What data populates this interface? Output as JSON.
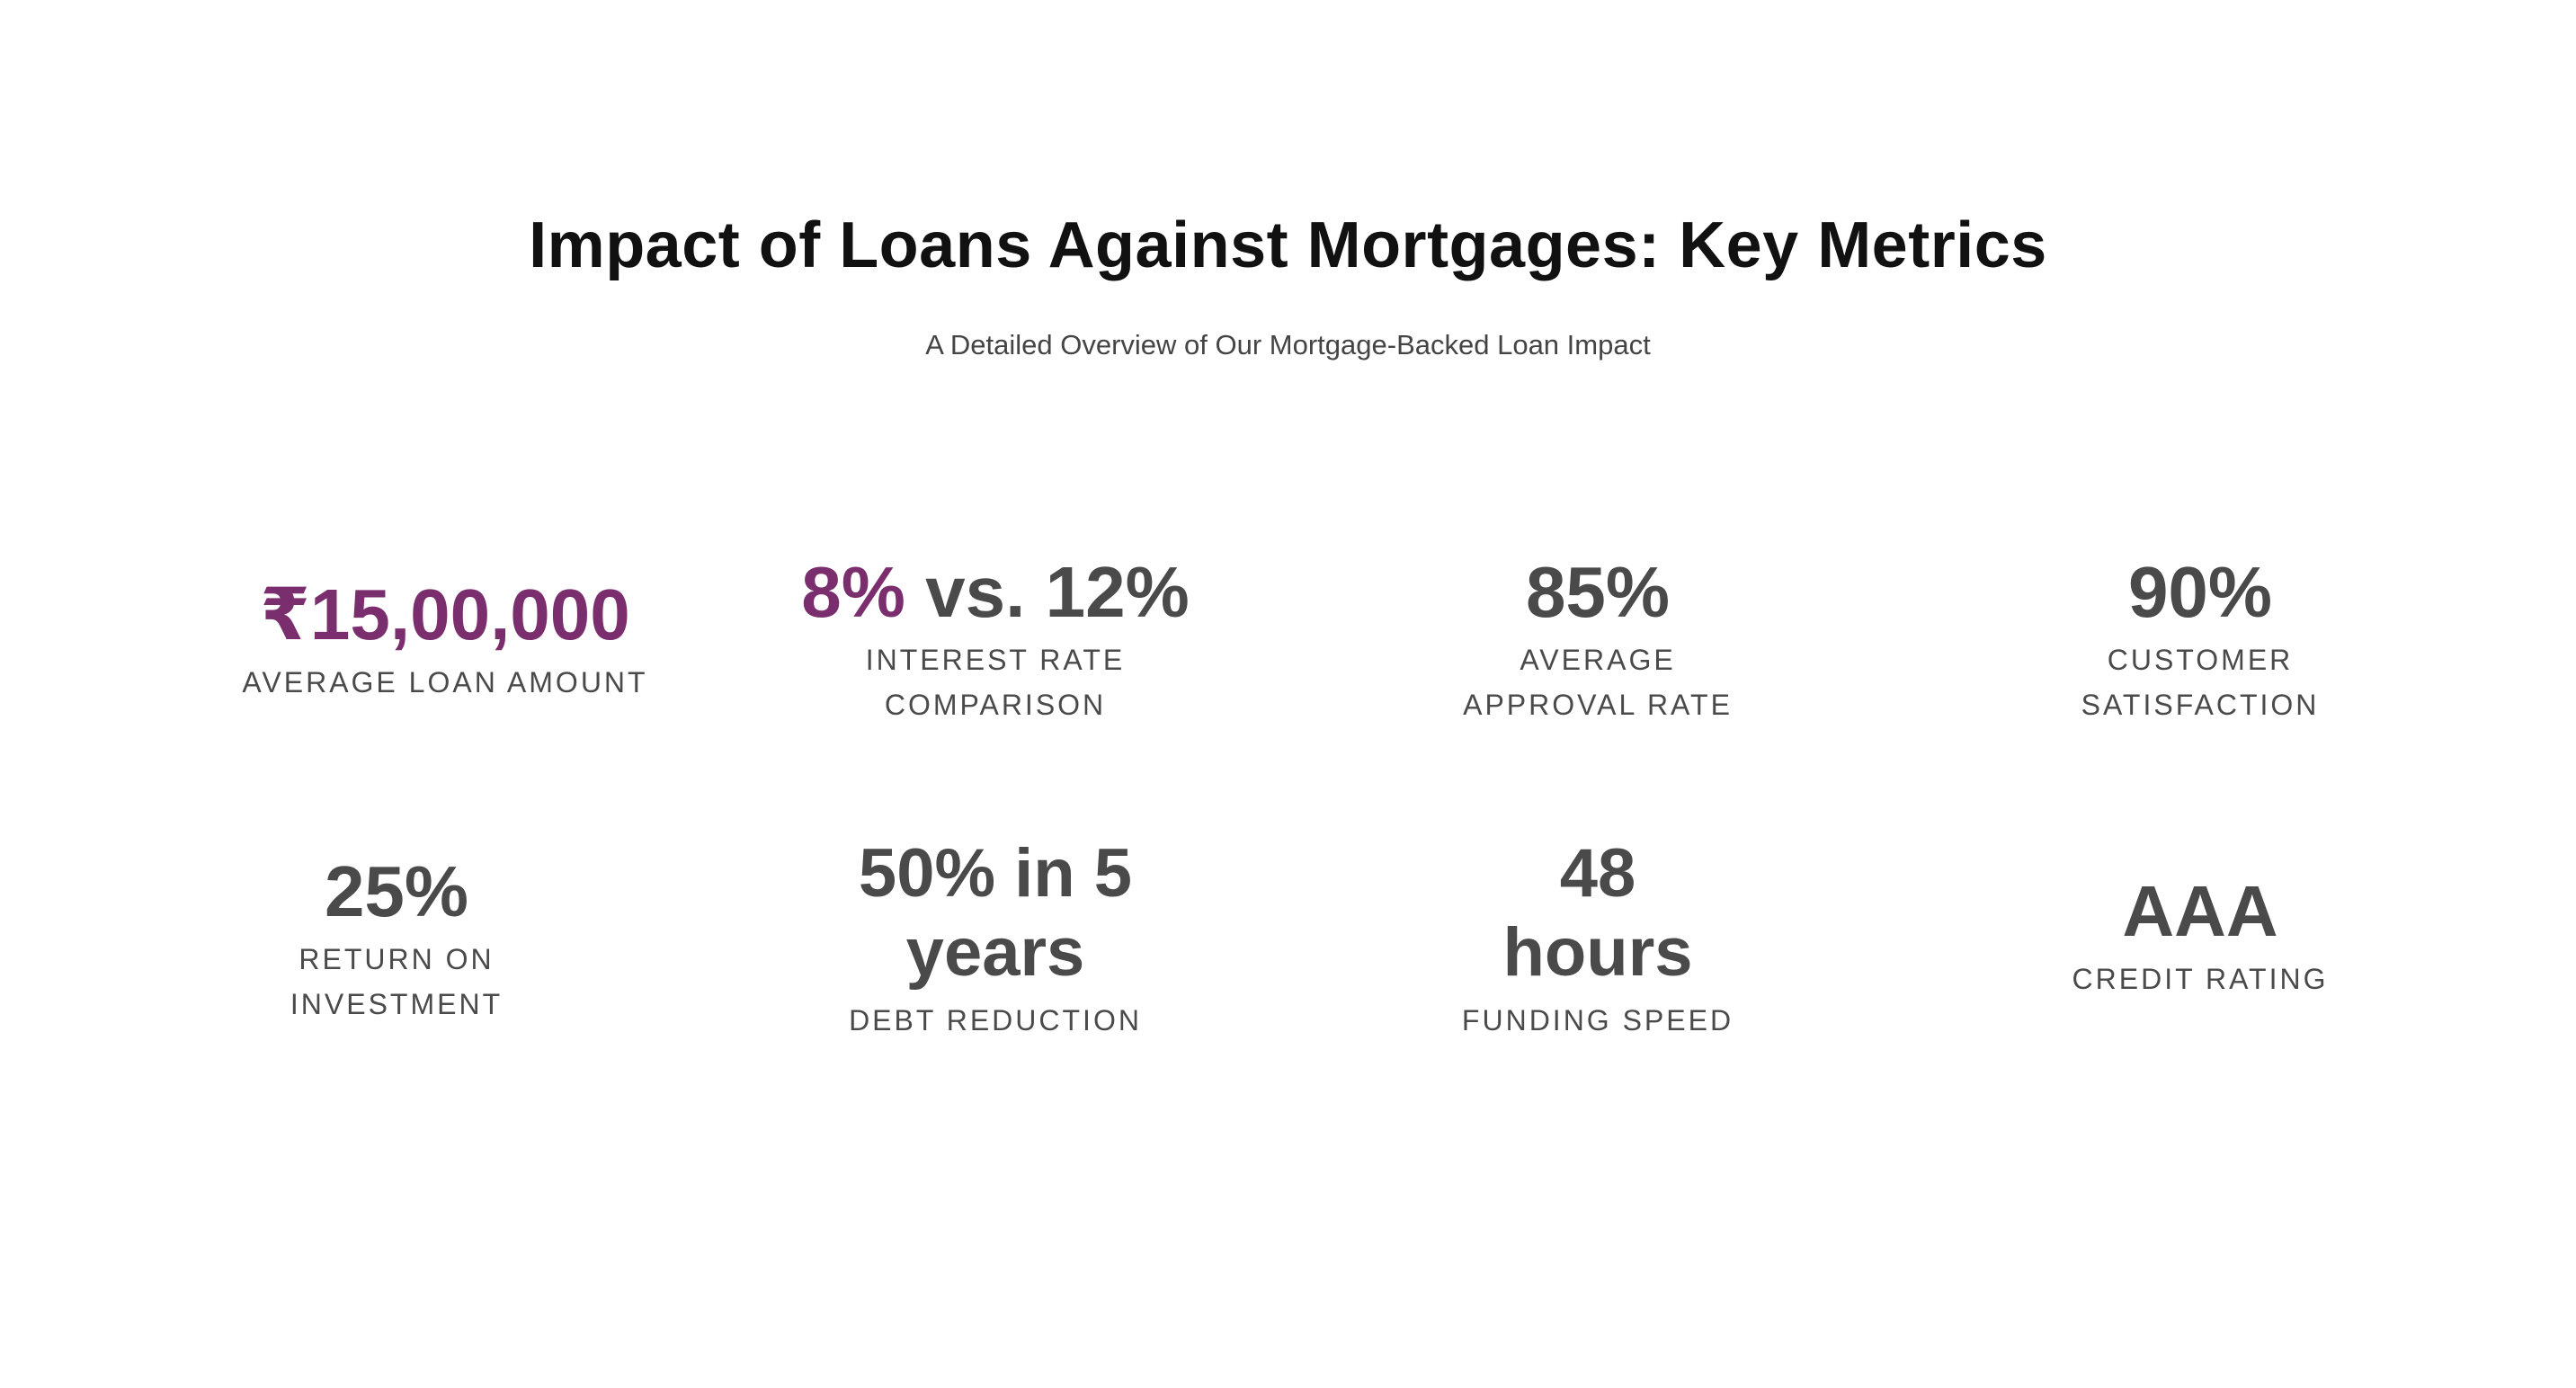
{
  "header": {
    "title": "Impact of Loans Against Mortgages: Key Metrics",
    "subtitle": "A Detailed Overview of Our Mortgage-Backed Loan Impact"
  },
  "colors": {
    "accent": "#7a2e6e",
    "value": "#4a4a4a",
    "title": "#111111"
  },
  "metrics": {
    "loan_amount": {
      "value": "₹15,00,000",
      "label": "AVERAGE LOAN AMOUNT"
    },
    "interest": {
      "value_a": "8%",
      "value_b": " vs. 12%",
      "label_1": "INTEREST RATE",
      "label_2": "COMPARISON"
    },
    "approval": {
      "value": "85%",
      "label_1": "AVERAGE",
      "label_2": "APPROVAL RATE"
    },
    "satisfaction": {
      "value": "90%",
      "label_1": "CUSTOMER",
      "label_2": "SATISFACTION"
    },
    "roi": {
      "value": "25%",
      "label_1": "RETURN ON",
      "label_2": "INVESTMENT"
    },
    "debt": {
      "value_1": "50% in 5",
      "value_2": "years",
      "label": "DEBT REDUCTION"
    },
    "funding": {
      "value_1": "48",
      "value_2": "hours",
      "label": "FUNDING SPEED"
    },
    "credit": {
      "value": "AAA",
      "label": "CREDIT RATING"
    }
  }
}
